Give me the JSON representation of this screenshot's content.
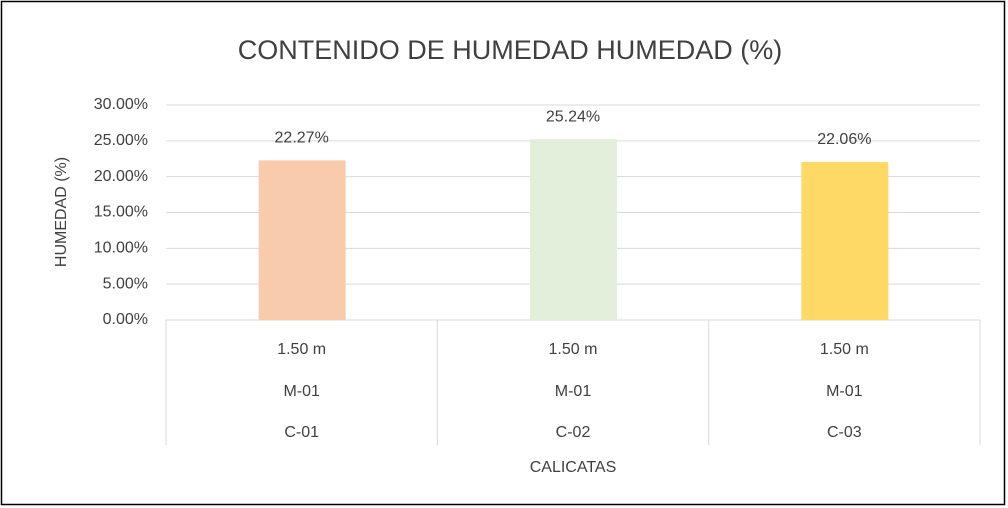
{
  "chart_data": {
    "type": "bar",
    "title": "CONTENIDO DE HUMEDAD HUMEDAD (%)",
    "y_label": "HUMEDAD (%)",
    "x_label": "CALICATAS",
    "categories": [
      [
        "1.50 m",
        "M-01",
        "C-01"
      ],
      [
        "1.50 m",
        "M-01",
        "C-02"
      ],
      [
        "1.50 m",
        "M-01",
        "C-03"
      ]
    ],
    "values": [
      22.27,
      25.24,
      22.06
    ],
    "value_labels": [
      "22.27%",
      "25.24%",
      "22.06%"
    ],
    "colors": [
      "#f8cbad",
      "#e2efda",
      "#ffd966"
    ],
    "ylim": [
      0,
      30
    ],
    "yticks": [
      {
        "value": 0,
        "label": "0.00%"
      },
      {
        "value": 5,
        "label": "5.00%"
      },
      {
        "value": 10,
        "label": "10.00%"
      },
      {
        "value": 15,
        "label": "15.00%"
      },
      {
        "value": 20,
        "label": "20.00%"
      },
      {
        "value": 25,
        "label": "25.00%"
      },
      {
        "value": 30,
        "label": "30.00%"
      }
    ],
    "grid": true
  }
}
